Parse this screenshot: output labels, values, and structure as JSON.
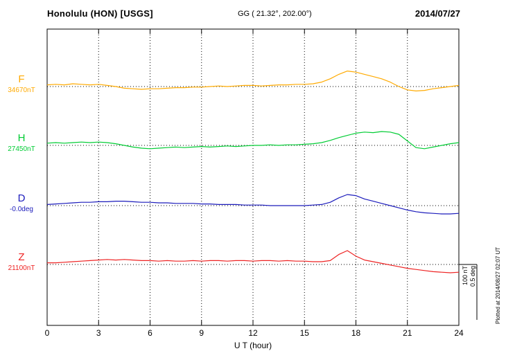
{
  "header": {
    "station": "Honolulu (HON)  [USGS]",
    "coords": "GG ( 21.32°, 202.00°)",
    "date": "2014/07/27"
  },
  "axis": {
    "xlabel": "U T (hour)",
    "x_ticks": [
      0,
      3,
      6,
      9,
      12,
      15,
      18,
      21,
      24
    ],
    "x_range": [
      0,
      24
    ]
  },
  "scale_bar": {
    "nt": "100 nT",
    "deg": "0.5 deg"
  },
  "plotted_note": "Plotted at 2014/08/27 02:07 UT",
  "colors": {
    "F": "#ffaa00",
    "H": "#00cc33",
    "D": "#1a1abb",
    "Z": "#ee2222"
  },
  "chart_data": {
    "type": "line",
    "title": "Honolulu (HON) [USGS] magnetogram 2014/07/27",
    "xlabel": "U T (hour)",
    "x_unit": "hour",
    "x_range": [
      0,
      24
    ],
    "x_step": 0.5,
    "grid": "vertical dotted every 3 h, dotted baseline per channel",
    "scale": {
      "nt_per_division": 100,
      "deg_per_division": 0.5
    },
    "series": [
      {
        "id": "F",
        "label": "F",
        "baseline_label": "34670nT",
        "unit": "nT",
        "color": "#ffaa00",
        "baseline_value": 34670,
        "offsets": [
          3,
          4,
          3,
          5,
          4,
          3,
          4,
          2,
          0,
          -3,
          -4,
          -5,
          -4,
          -4,
          -3,
          -2,
          -2,
          -1,
          -1,
          0,
          1,
          0,
          1,
          2,
          2,
          1,
          2,
          3,
          3,
          4,
          4,
          5,
          8,
          14,
          22,
          28,
          26,
          22,
          18,
          14,
          8,
          0,
          -6,
          -8,
          -7,
          -4,
          -2,
          0,
          2
        ]
      },
      {
        "id": "H",
        "label": "H",
        "baseline_label": "27450nT",
        "unit": "nT",
        "color": "#00cc33",
        "baseline_value": 27450,
        "offsets": [
          4,
          5,
          4,
          5,
          6,
          5,
          6,
          5,
          3,
          0,
          -3,
          -5,
          -6,
          -5,
          -4,
          -3,
          -4,
          -3,
          -2,
          -3,
          -2,
          -1,
          -2,
          -1,
          0,
          0,
          1,
          0,
          1,
          1,
          2,
          3,
          5,
          9,
          14,
          18,
          22,
          24,
          23,
          25,
          24,
          20,
          8,
          -4,
          -6,
          -3,
          0,
          3,
          5
        ]
      },
      {
        "id": "D",
        "label": "D",
        "baseline_label": "-0.0deg",
        "unit": "deg",
        "color": "#1a1abb",
        "baseline_value": -0.0,
        "offsets": [
          0.01,
          0.015,
          0.02,
          0.025,
          0.03,
          0.03,
          0.035,
          0.035,
          0.04,
          0.04,
          0.035,
          0.03,
          0.03,
          0.025,
          0.025,
          0.02,
          0.02,
          0.02,
          0.015,
          0.015,
          0.01,
          0.01,
          0.01,
          0.005,
          0.005,
          0.005,
          0,
          0,
          0,
          0,
          0,
          0.005,
          0.01,
          0.03,
          0.07,
          0.1,
          0.09,
          0.06,
          0.04,
          0.02,
          0,
          -0.02,
          -0.04,
          -0.055,
          -0.065,
          -0.07,
          -0.075,
          -0.075,
          -0.07
        ]
      },
      {
        "id": "Z",
        "label": "Z",
        "baseline_label": "21100nT",
        "unit": "nT",
        "color": "#ee2222",
        "baseline_value": 21100,
        "offsets": [
          3,
          3,
          4,
          5,
          6,
          7,
          8,
          9,
          8,
          9,
          8,
          7,
          7,
          6,
          7,
          6,
          6,
          7,
          6,
          7,
          7,
          6,
          7,
          7,
          6,
          7,
          7,
          6,
          7,
          6,
          6,
          5,
          5,
          7,
          18,
          25,
          15,
          8,
          5,
          2,
          -1,
          -4,
          -7,
          -9,
          -11,
          -13,
          -14,
          -15,
          -14
        ]
      }
    ]
  }
}
